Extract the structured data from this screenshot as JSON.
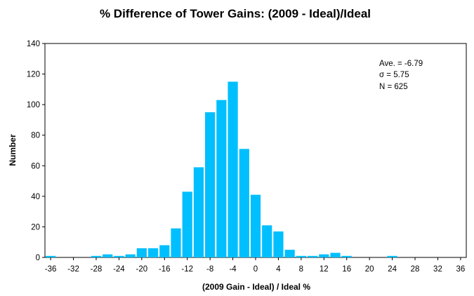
{
  "chart_data": {
    "type": "bar",
    "title": "% Difference of  Tower Gains: (2009 - Ideal)/Ideal",
    "xlabel": "(2009 Gain - Ideal) / Ideal %",
    "ylabel": "Number",
    "xlim": [
      -37,
      37
    ],
    "ylim": [
      0,
      140
    ],
    "x_ticks": [
      "-36",
      "-32",
      "-28",
      "-24",
      "-20",
      "-16",
      "-12",
      "-8",
      "-4",
      "0",
      "4",
      "8",
      "12",
      "16",
      "20",
      "24",
      "28",
      "32",
      "36"
    ],
    "y_ticks": [
      "0",
      "20",
      "40",
      "60",
      "80",
      "100",
      "120",
      "140"
    ],
    "bin_width": 2,
    "x": [
      -36,
      -34,
      -32,
      -30,
      -28,
      -26,
      -24,
      -22,
      -20,
      -18,
      -16,
      -14,
      -12,
      -10,
      -8,
      -6,
      -4,
      -2,
      0,
      2,
      4,
      6,
      8,
      10,
      12,
      14,
      16,
      18,
      20,
      22,
      24,
      26,
      28,
      30,
      32,
      34,
      36
    ],
    "values": [
      1,
      0,
      0,
      0,
      1,
      2,
      1,
      2,
      6,
      6,
      8,
      19,
      43,
      59,
      95,
      103,
      115,
      71,
      41,
      21,
      17,
      5,
      1,
      1,
      2,
      3,
      1,
      0,
      0,
      0,
      1,
      0,
      0,
      0,
      0,
      0,
      0
    ],
    "bar_color": "#00BFFF",
    "grid": false,
    "legend": "none",
    "annotation": {
      "lines": [
        "Ave. = -6.79",
        "σ = 5.75",
        "N =  625"
      ],
      "placement": "top-right"
    }
  }
}
